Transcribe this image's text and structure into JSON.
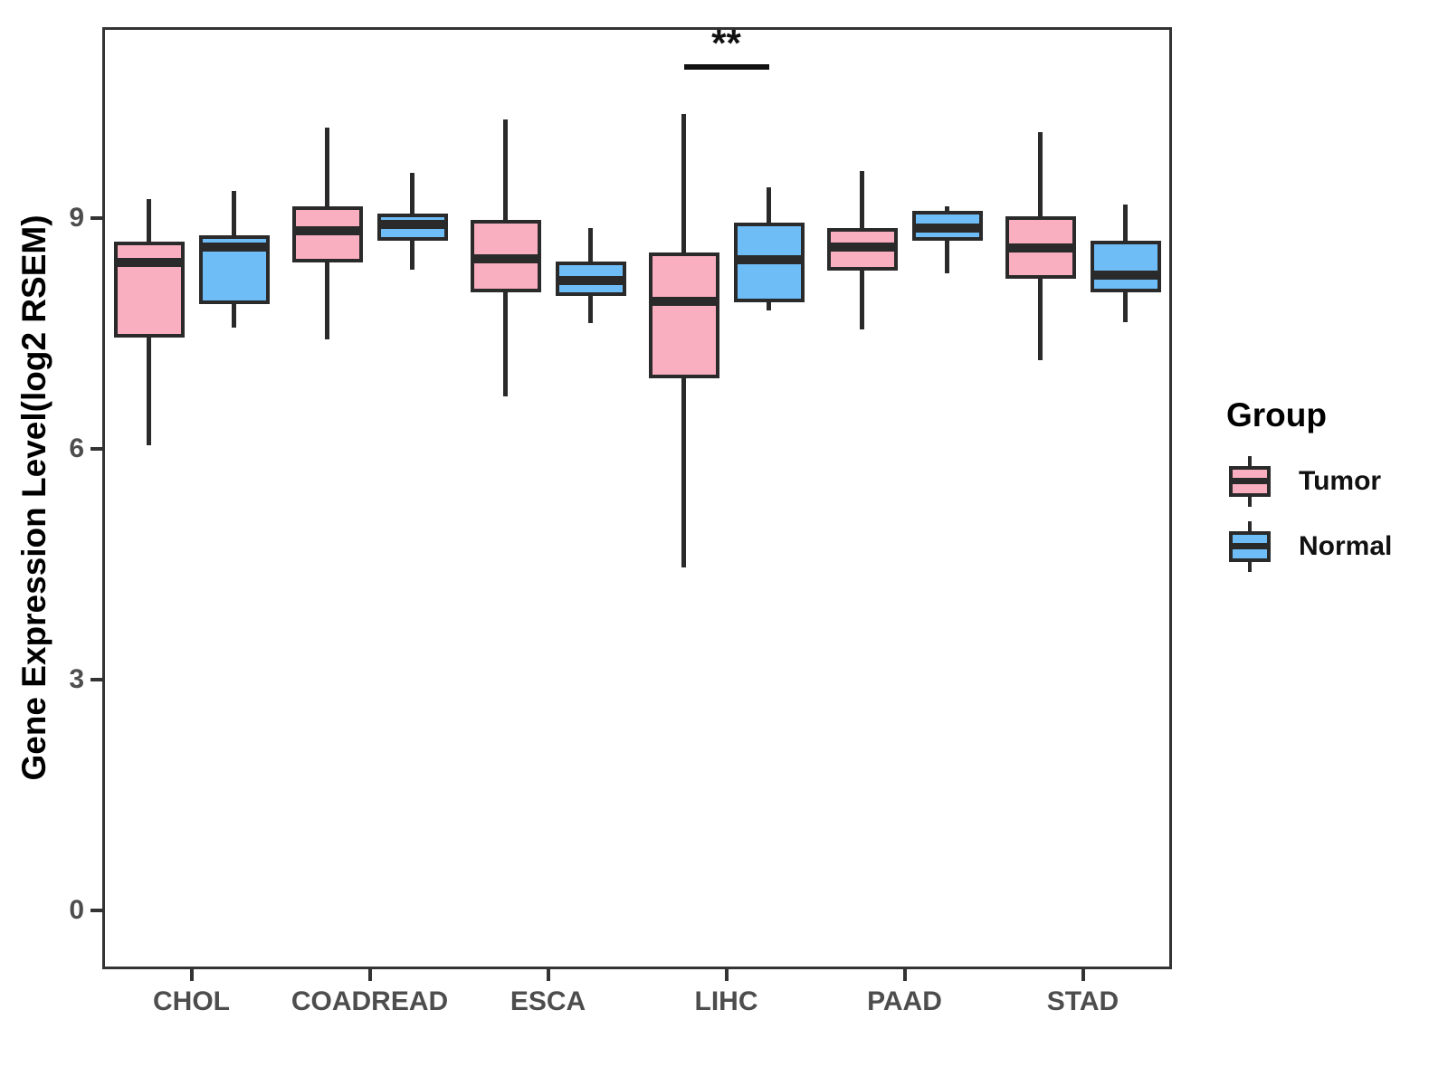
{
  "chart_data": {
    "type": "boxplot",
    "title": "",
    "xlabel": "",
    "ylabel": "Gene Expression Level(log2 RSEM)",
    "ylim": [
      -0.76,
      11.48
    ],
    "yticks": [
      0,
      3,
      6,
      9
    ],
    "grid": false,
    "categories": [
      "CHOL",
      "COADREAD",
      "ESCA",
      "LIHC",
      "PAAD",
      "STAD"
    ],
    "legend": {
      "title": "Group",
      "position": "right"
    },
    "series": [
      {
        "name": "Tumor",
        "color": "#FAAFC0",
        "boxes": [
          {
            "category": "CHOL",
            "min": 6.05,
            "q1": 7.45,
            "median": 8.42,
            "q3": 8.69,
            "max": 9.25
          },
          {
            "category": "COADREAD",
            "min": 7.42,
            "q1": 8.42,
            "median": 8.84,
            "q3": 9.15,
            "max": 10.18
          },
          {
            "category": "ESCA",
            "min": 6.68,
            "q1": 8.04,
            "median": 8.47,
            "q3": 8.98,
            "max": 10.28
          },
          {
            "category": "LIHC",
            "min": 4.46,
            "q1": 6.92,
            "median": 7.92,
            "q3": 8.55,
            "max": 10.35
          },
          {
            "category": "PAAD",
            "min": 7.55,
            "q1": 8.32,
            "median": 8.62,
            "q3": 8.87,
            "max": 9.61
          },
          {
            "category": "STAD",
            "min": 7.15,
            "q1": 8.21,
            "median": 8.61,
            "q3": 9.02,
            "max": 10.12
          }
        ]
      },
      {
        "name": "Normal",
        "color": "#6FBDF7",
        "boxes": [
          {
            "category": "CHOL",
            "min": 7.58,
            "q1": 7.88,
            "median": 8.62,
            "q3": 8.78,
            "max": 9.35
          },
          {
            "category": "COADREAD",
            "min": 8.33,
            "q1": 8.71,
            "median": 8.92,
            "q3": 9.06,
            "max": 9.59
          },
          {
            "category": "ESCA",
            "min": 7.64,
            "q1": 7.99,
            "median": 8.19,
            "q3": 8.44,
            "max": 8.87
          },
          {
            "category": "LIHC",
            "min": 7.8,
            "q1": 7.91,
            "median": 8.46,
            "q3": 8.94,
            "max": 9.4
          },
          {
            "category": "PAAD",
            "min": 8.28,
            "q1": 8.71,
            "median": 8.87,
            "q3": 9.09,
            "max": 9.15
          },
          {
            "category": "STAD",
            "min": 7.65,
            "q1": 8.04,
            "median": 8.26,
            "q3": 8.71,
            "max": 9.18
          }
        ]
      }
    ],
    "annotations": [
      {
        "type": "significance",
        "label": "**",
        "category": "LIHC",
        "between": [
          "Tumor",
          "Normal"
        ],
        "y_value": 11.0
      }
    ],
    "style": {
      "box_border_color": "#2A2A2A",
      "whisker_color": "#2A2A2A",
      "panel_border_color": "#333333",
      "tick_label_color": "#4D4D4D",
      "axis_title_color": "#000000",
      "background": "#FFFFFF"
    }
  }
}
